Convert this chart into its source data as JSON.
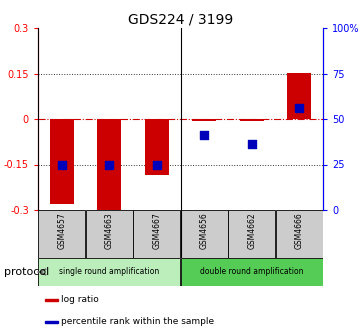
{
  "title": "GDS224 / 3199",
  "samples": [
    "GSM4657",
    "GSM4663",
    "GSM4667",
    "GSM4656",
    "GSM4662",
    "GSM4666"
  ],
  "log_ratios": [
    -0.28,
    -0.305,
    -0.185,
    -0.005,
    -0.005,
    0.152
  ],
  "percentile_ranks": [
    25,
    25,
    25,
    41,
    36,
    56
  ],
  "ylim_left": [
    -0.3,
    0.3
  ],
  "ylim_right": [
    0,
    100
  ],
  "yticks_left": [
    -0.3,
    -0.15,
    0,
    0.15,
    0.3
  ],
  "yticks_right": [
    0,
    25,
    50,
    75,
    100
  ],
  "ytick_labels_left": [
    "-0.3",
    "-0.15",
    "0",
    "0.15",
    "0.3"
  ],
  "ytick_labels_right": [
    "0",
    "25",
    "50",
    "75",
    "100%"
  ],
  "bar_color": "#cc0000",
  "dot_color": "#0000bb",
  "protocol_groups": [
    {
      "label": "single round amplification",
      "indices": [
        0,
        1,
        2
      ],
      "color": "#bbeebb"
    },
    {
      "label": "double round amplification",
      "indices": [
        3,
        4,
        5
      ],
      "color": "#55cc55"
    }
  ],
  "legend_items": [
    {
      "color": "#cc0000",
      "label": "log ratio"
    },
    {
      "color": "#0000bb",
      "label": "percentile rank within the sample"
    }
  ],
  "bar_width": 0.5,
  "dot_size": 40,
  "hline_color": "#cc0000",
  "dotted_color": "#333333",
  "title_fontsize": 10,
  "tick_fontsize": 7,
  "protocol_label": "protocol",
  "protocol_label_fontsize": 8,
  "sample_box_color": "#cccccc",
  "n_samples": 6,
  "split_after": 2
}
